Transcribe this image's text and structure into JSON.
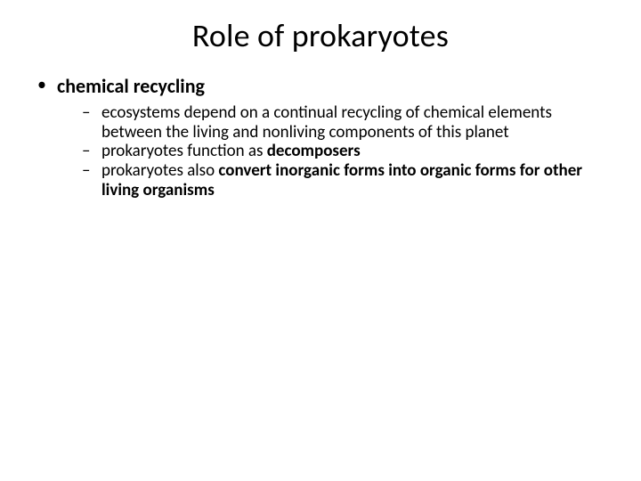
{
  "slide": {
    "background_color": "#ffffff",
    "text_color": "#000000",
    "font_family": "Calibri",
    "title": {
      "text": "Role of prokaryotes",
      "fontsize": 36,
      "weight": 400,
      "align": "center"
    },
    "level1_item": {
      "text": "chemical recycling",
      "fontsize": 22,
      "weight": 700,
      "bullet": "•"
    },
    "level2_items": [
      {
        "segments": [
          {
            "text": "ecosystems depend on a continual recycling of chemical elements between the living and nonliving components of this planet",
            "bold": false
          }
        ]
      },
      {
        "segments": [
          {
            "text": "prokaryotes function as ",
            "bold": false
          },
          {
            "text": "decomposers",
            "bold": true
          }
        ]
      },
      {
        "segments": [
          {
            "text": "prokaryotes also ",
            "bold": false
          },
          {
            "text": "convert inorganic forms into organic forms for other living organisms",
            "bold": true
          }
        ]
      }
    ],
    "level2_style": {
      "fontsize": 19,
      "weight": 400,
      "bullet": "–",
      "line_height": 1.14
    }
  }
}
